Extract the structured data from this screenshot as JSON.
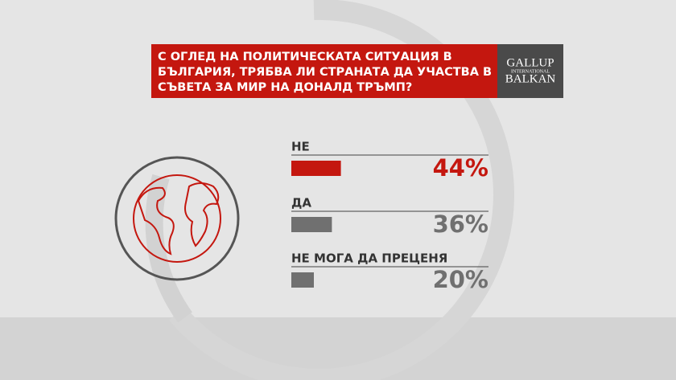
{
  "chart_data": {
    "type": "hbar",
    "title_lines": [
      "С ОГЛЕД НА ПОЛИТИЧЕСКАТА СИТУАЦИЯ В",
      "БЪЛГАРИЯ, ТРЯБВА ЛИ СТРАНАТА ДА УЧАСТВА В",
      "СЪВЕТА ЗА МИР НА ДОНАЛД ТРЪМП?"
    ],
    "categories": [
      "НЕ",
      "ДА",
      "НЕ МОГА ДА ПРЕЦЕНЯ"
    ],
    "values": [
      44,
      36,
      20
    ],
    "value_labels": [
      "44%",
      "36%",
      "20%"
    ],
    "colors": [
      "#c4170f",
      "#707070",
      "#707070"
    ]
  },
  "logo": {
    "top": "GALLUP",
    "middle": "INTERNATIONAL",
    "bottom": "BALKAN"
  }
}
